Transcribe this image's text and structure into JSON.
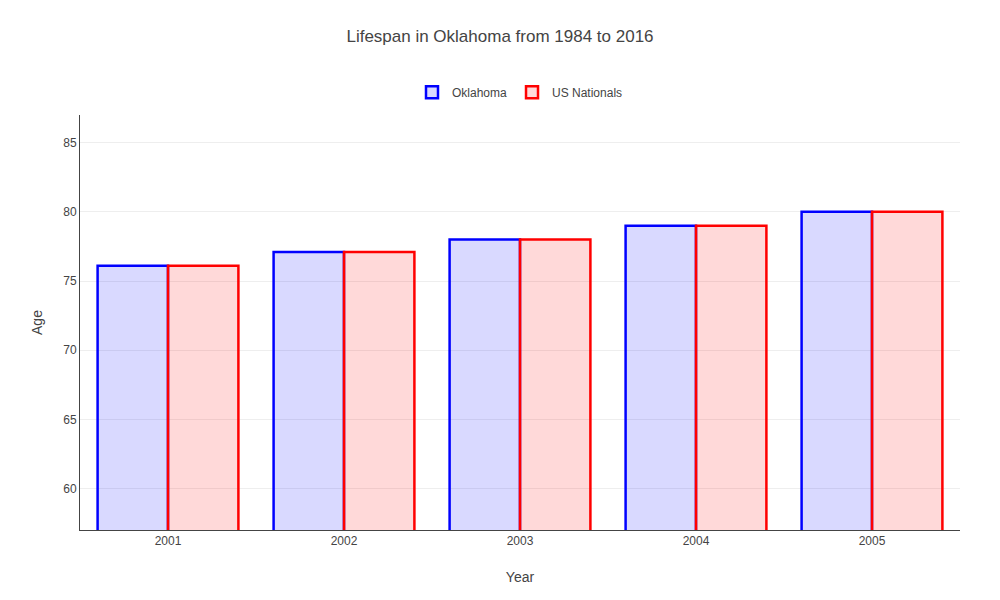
{
  "chart_data": {
    "type": "bar",
    "title": "Lifespan in Oklahoma from 1984 to 2016",
    "xlabel": "Year",
    "ylabel": "Age",
    "categories": [
      "2001",
      "2002",
      "2003",
      "2004",
      "2005"
    ],
    "series": [
      {
        "name": "Oklahoma",
        "color": "#0000ff",
        "values": [
          76.1,
          77.1,
          78.0,
          79.0,
          80.0
        ]
      },
      {
        "name": "US Nationals",
        "color": "#ff0000",
        "values": [
          76.1,
          77.1,
          78.0,
          79.0,
          80.0
        ]
      }
    ],
    "ylim": [
      57,
      87
    ],
    "yticks": [
      60,
      65,
      70,
      75,
      80,
      85
    ],
    "grid": true,
    "legend": "top"
  }
}
